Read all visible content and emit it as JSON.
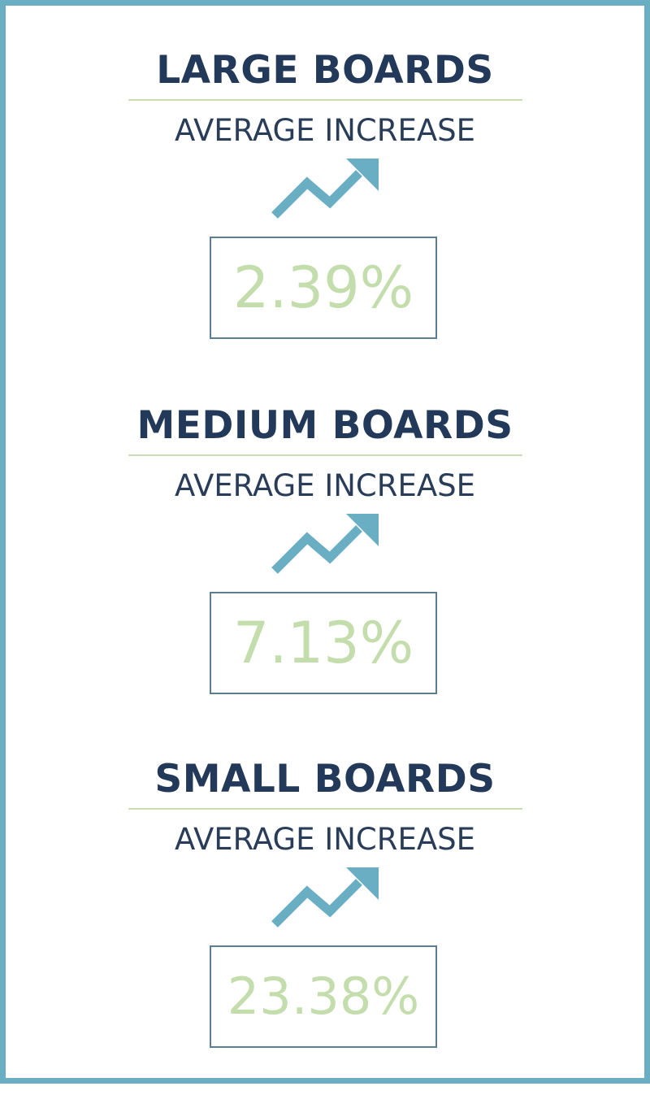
{
  "accent_color": "#6aaec4",
  "title_color": "#23395a",
  "value_color": "#c4ddac",
  "sections": [
    {
      "title": "LARGE BOARDS",
      "subtitle": "AVERAGE INCREASE",
      "icon": "trend-up-arrow-icon",
      "value": "2.39%"
    },
    {
      "title": "MEDIUM BOARDS",
      "subtitle": "AVERAGE INCREASE",
      "icon": "trend-up-arrow-icon",
      "value": "7.13%"
    },
    {
      "title": "SMALL BOARDS",
      "subtitle": "AVERAGE INCREASE",
      "icon": "trend-up-arrow-icon",
      "value": "23.38%"
    }
  ]
}
